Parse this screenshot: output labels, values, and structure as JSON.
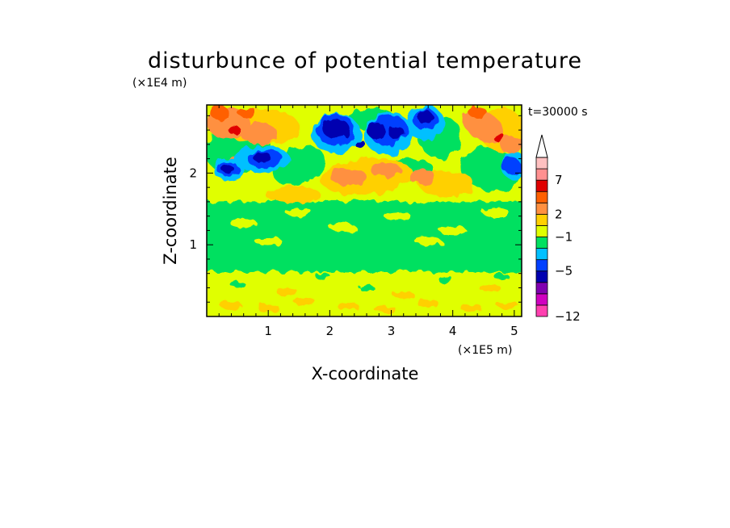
{
  "chart_data": {
    "type": "heatmap",
    "title": "disturbunce of potential temperature",
    "xlabel": "X-coordinate",
    "ylabel": "Z-coordinate",
    "x_scale_label": "(×1E5 m)",
    "y_scale_label": "(×1E4 m)",
    "time_label": "t=30000 s",
    "xlim": [
      0,
      5.12
    ],
    "ylim": [
      0,
      2.95
    ],
    "x_ticks": [
      "1",
      "2",
      "3",
      "4",
      "5"
    ],
    "y_ticks": [
      "1",
      "2"
    ],
    "colorbar": {
      "colors": [
        "#ff40b0",
        "#d000c0",
        "#8000b0",
        "#0000b0",
        "#0040ff",
        "#00c0ff",
        "#00e060",
        "#e0ff00",
        "#ffd000",
        "#ff9040",
        "#ff6000",
        "#e00000",
        "#ff9090",
        "#ffc0c0"
      ],
      "labels": [
        "-12",
        "-5",
        "-1",
        "2",
        "7"
      ],
      "extend": "max",
      "over_color": "#ffffff"
    },
    "field_colors": {
      "dark_blue": "#0000b0",
      "blue": "#0040ff",
      "cyan": "#00c0ff",
      "green": "#00e060",
      "yellow": "#e0ff00",
      "light_orange": "#ffd000",
      "orange": "#ff9040",
      "red_orange": "#ff6000",
      "red": "#e00000"
    }
  }
}
